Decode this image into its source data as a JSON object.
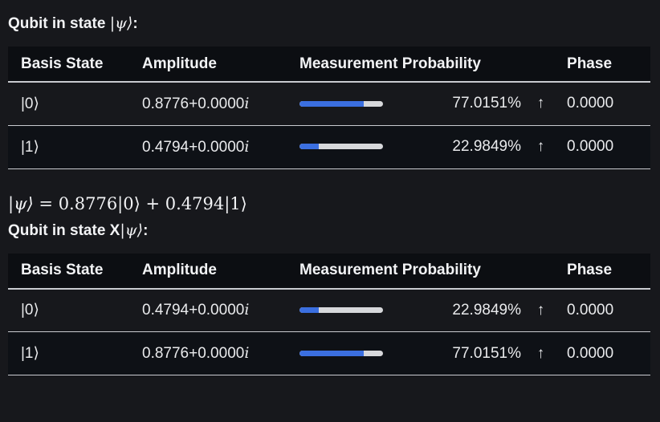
{
  "section1": {
    "heading_prefix": "Qubit in state ",
    "heading_ket": "|ψ⟩",
    "heading_suffix": ":",
    "headers": {
      "basis": "Basis State",
      "amplitude": "Amplitude",
      "probability": "Measurement Probability",
      "phase": "Phase"
    },
    "rows": [
      {
        "basis": "|0⟩",
        "amp_real": "0.8776+0.0000",
        "amp_i": "i",
        "prob_fraction": 0.770151,
        "prob_text": "77.0151%",
        "arrow": "↑",
        "phase": "0.0000"
      },
      {
        "basis": "|1⟩",
        "amp_real": "0.4794+0.0000",
        "amp_i": "i",
        "prob_fraction": 0.229849,
        "prob_text": "22.9849%",
        "arrow": "↑",
        "phase": "0.0000"
      }
    ]
  },
  "equation": {
    "lhs": "|ψ⟩",
    "rhs": " = 0.8776|0⟩ + 0.4794|1⟩"
  },
  "section2": {
    "heading_prefix": "Qubit in state X",
    "heading_ket": "|ψ⟩",
    "heading_suffix": ":",
    "headers": {
      "basis": "Basis State",
      "amplitude": "Amplitude",
      "probability": "Measurement Probability",
      "phase": "Phase"
    },
    "rows": [
      {
        "basis": "|0⟩",
        "amp_real": "0.4794+0.0000",
        "amp_i": "i",
        "prob_fraction": 0.229849,
        "prob_text": "22.9849%",
        "arrow": "↑",
        "phase": "0.0000"
      },
      {
        "basis": "|1⟩",
        "amp_real": "0.8776+0.0000",
        "amp_i": "i",
        "prob_fraction": 0.770151,
        "prob_text": "77.0151%",
        "arrow": "↑",
        "phase": "0.0000"
      }
    ]
  },
  "colors": {
    "bar_fill": "#3b6fe0",
    "bar_track": "#d7d8db",
    "background": "#17181c",
    "header_bg": "#0c0e12"
  }
}
